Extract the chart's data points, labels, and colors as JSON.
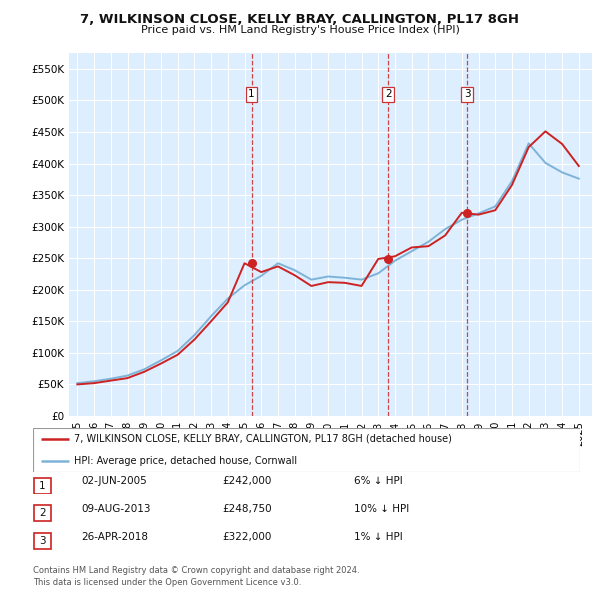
{
  "title": "7, WILKINSON CLOSE, KELLY BRAY, CALLINGTON, PL17 8GH",
  "subtitle": "Price paid vs. HM Land Registry's House Price Index (HPI)",
  "ylim": [
    0,
    575000
  ],
  "xlim_min": 1994.5,
  "xlim_max": 2025.8,
  "sale_dates": [
    2005.42,
    2013.6,
    2018.32
  ],
  "sale_prices": [
    242000,
    248750,
    322000
  ],
  "sale_labels": [
    "1",
    "2",
    "3"
  ],
  "hpi_line_color": "#7eb3d8",
  "price_line_color": "#cc2222",
  "dashed_line_color": "#cc3333",
  "background_color": "#ddeeff",
  "grid_color": "#ffffff",
  "legend_items": [
    "7, WILKINSON CLOSE, KELLY BRAY, CALLINGTON, PL17 8GH (detached house)",
    "HPI: Average price, detached house, Cornwall"
  ],
  "table_rows": [
    [
      "1",
      "02-JUN-2005",
      "£242,000",
      "6% ↓ HPI"
    ],
    [
      "2",
      "09-AUG-2013",
      "£248,750",
      "10% ↓ HPI"
    ],
    [
      "3",
      "26-APR-2018",
      "£322,000",
      "1% ↓ HPI"
    ]
  ],
  "footer": "Contains HM Land Registry data © Crown copyright and database right 2024.\nThis data is licensed under the Open Government Licence v3.0.",
  "hpi_years": [
    1995,
    1996,
    1997,
    1998,
    1999,
    2000,
    2001,
    2002,
    2003,
    2004,
    2005,
    2006,
    2007,
    2008,
    2009,
    2010,
    2011,
    2012,
    2013,
    2014,
    2015,
    2016,
    2017,
    2018,
    2019,
    2020,
    2021,
    2022,
    2023,
    2024,
    2025
  ],
  "hpi_values": [
    52000,
    55000,
    59000,
    64000,
    74000,
    88000,
    103000,
    128000,
    158000,
    186000,
    207000,
    222000,
    242000,
    231000,
    216000,
    221000,
    219000,
    216000,
    226000,
    246000,
    261000,
    276000,
    296000,
    311000,
    321000,
    332000,
    372000,
    432000,
    401000,
    386000,
    376000
  ],
  "price_years": [
    1995,
    1996,
    1997,
    1998,
    1999,
    2000,
    2001,
    2002,
    2003,
    2004,
    2005,
    2006,
    2007,
    2008,
    2009,
    2010,
    2011,
    2012,
    2013,
    2014,
    2015,
    2016,
    2017,
    2018,
    2019,
    2020,
    2021,
    2022,
    2023,
    2024,
    2025
  ],
  "price_values": [
    50000,
    52000,
    56000,
    60000,
    70000,
    83000,
    97000,
    121000,
    150000,
    180000,
    242000,
    228000,
    237000,
    223000,
    206000,
    212000,
    211000,
    206000,
    248750,
    253000,
    267000,
    269000,
    286000,
    322000,
    319000,
    326000,
    366000,
    426000,
    451000,
    431000,
    396000
  ]
}
